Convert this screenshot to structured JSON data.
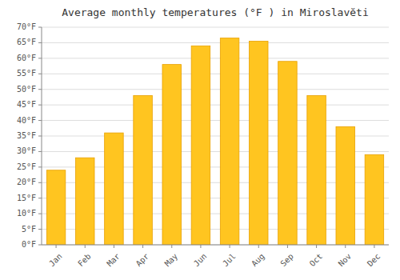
{
  "chart_data": {
    "type": "bar",
    "title": "Average monthly temperatures (°F ) in Miroslavĕti",
    "categories": [
      "Jan",
      "Feb",
      "Mar",
      "Apr",
      "May",
      "Jun",
      "Jul",
      "Aug",
      "Sep",
      "Oct",
      "Nov",
      "Dec"
    ],
    "values": [
      24,
      28,
      36,
      48,
      58,
      64,
      66.5,
      65.5,
      59,
      48,
      38,
      29
    ],
    "color": "#FFC520",
    "ylim": [
      0,
      70
    ],
    "yticks": [
      {
        "value": 0,
        "label": "0°F"
      },
      {
        "value": 5,
        "label": "5°F"
      },
      {
        "value": 10,
        "label": "10°F"
      },
      {
        "value": 15,
        "label": "15°F"
      },
      {
        "value": 20,
        "label": "20°F"
      },
      {
        "value": 25,
        "label": "25°F"
      },
      {
        "value": 30,
        "label": "30°F"
      },
      {
        "value": 35,
        "label": "35°F"
      },
      {
        "value": 40,
        "label": "40°F"
      },
      {
        "value": 45,
        "label": "45°F"
      },
      {
        "value": 50,
        "label": "50°F"
      },
      {
        "value": 55,
        "label": "55°F"
      },
      {
        "value": 60,
        "label": "60°F"
      },
      {
        "value": 65,
        "label": "65°F"
      },
      {
        "value": 70,
        "label": "70°F"
      }
    ],
    "grid": true
  }
}
